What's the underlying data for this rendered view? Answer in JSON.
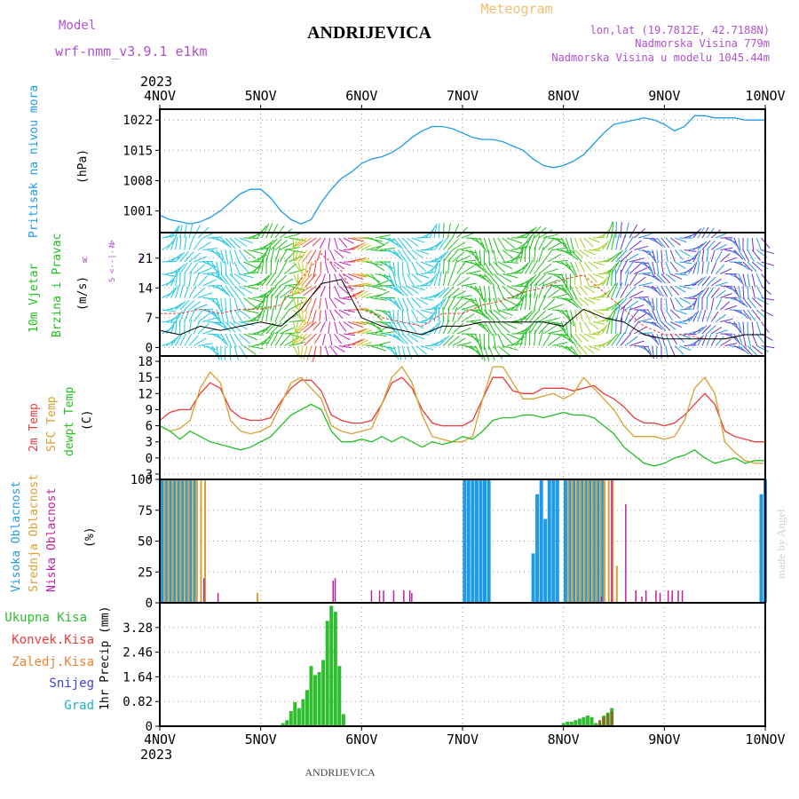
{
  "header": {
    "model_label": "Model",
    "model_name": "wrf-nmm_v3.9.1  e1km",
    "station": "ANDRIJEVICA",
    "meteogram": "Meteogram",
    "lonlat": "lon,lat (19.7812E, 42.7188N)",
    "elevation": "Nadmorska Visina 779m",
    "model_elevation": "Nadmorska Visina u modelu 1045.44m",
    "footer_station": "ANDRIJEVICA",
    "watermark": "made by Angel"
  },
  "colors": {
    "pressure": "#1e9be8",
    "temp2m": "#e83c3c",
    "sfc_temp": "#d9a030",
    "dewpt": "#22c022",
    "high_cloud": "#1e9be8",
    "mid_cloud": "#d9a030",
    "low_cloud": "#c020a0",
    "precip_total": "#2ebd2e",
    "precip_conv": "#e83c3c",
    "precip_frozen": "#f08030",
    "snow": "#4040e0",
    "hail": "#20b0c0",
    "title_purple": "#b050d0",
    "meteogram_orange": "#f0c070"
  },
  "chart_data": [
    {
      "type": "line",
      "panel": "pressure",
      "ylabel_main": "Pritisak na nivou mora",
      "ylabel_unit": "(hPa)",
      "x_ticks": [
        "4NOV",
        "5NOV",
        "6NOV",
        "7NOV",
        "8NOV",
        "9NOV",
        "10NOV"
      ],
      "x_year": "2023",
      "y_ticks": [
        1001,
        1008,
        1015,
        1022
      ],
      "ylim": [
        996,
        1024.5
      ],
      "grid": true,
      "series": [
        {
          "values_x_days": [
            0,
            0.1,
            0.2,
            0.3,
            0.4,
            0.5,
            0.6,
            0.7,
            0.8,
            0.9,
            1.0,
            1.1,
            1.2,
            1.3,
            1.4,
            1.5,
            1.6,
            1.7,
            1.8,
            1.9,
            2.0,
            2.1,
            2.2,
            2.3,
            2.4,
            2.5,
            2.6,
            2.7,
            2.8,
            2.9,
            3.0,
            3.1,
            3.2,
            3.3,
            3.4,
            3.5,
            3.6,
            3.7,
            3.8,
            3.9,
            4.0,
            4.1,
            4.2,
            4.3,
            4.4,
            4.5,
            4.6,
            4.7,
            4.8,
            4.9,
            5.0,
            5.1,
            5.2,
            5.3,
            5.4,
            5.5,
            5.6,
            5.7,
            5.8,
            5.9,
            6.0
          ],
          "values": [
            1000,
            999,
            998.5,
            998,
            998.5,
            999.5,
            1001,
            1003,
            1005,
            1006,
            1006,
            1004,
            1001,
            999,
            998,
            999,
            1003,
            1006,
            1008.5,
            1010,
            1012,
            1013,
            1013.5,
            1014.5,
            1016,
            1018,
            1019.5,
            1020.5,
            1020.5,
            1020,
            1019,
            1018,
            1017.5,
            1017.5,
            1017,
            1016,
            1015,
            1013,
            1011.5,
            1011,
            1011.5,
            1012.5,
            1014,
            1016.5,
            1019,
            1021,
            1021.5,
            1022,
            1022.5,
            1022,
            1021,
            1019.5,
            1020.5,
            1023,
            1023,
            1022.5,
            1022.5,
            1022.5,
            1022,
            1022,
            1022
          ]
        }
      ]
    },
    {
      "type": "line",
      "panel": "wind",
      "ylabel_main_1": "10m Vjetar",
      "ylabel_main_2": "Brzina i Pravac",
      "ylabel_unit": "(m/s)",
      "compass_top": "N",
      "compass_west": "W",
      "compass_east": "E",
      "compass_south": "S",
      "y_ticks": [
        0,
        7,
        14,
        21
      ],
      "ylim": [
        -2,
        27
      ],
      "grid": true,
      "series": [
        {
          "name": "wind speed",
          "values_x_days": [
            0,
            0.2,
            0.4,
            0.6,
            0.8,
            1.0,
            1.2,
            1.4,
            1.6,
            1.8,
            2.0,
            2.2,
            2.4,
            2.6,
            2.8,
            3.0,
            3.2,
            3.4,
            3.6,
            3.8,
            4.0,
            4.2,
            4.4,
            4.6,
            4.8,
            5.0,
            5.2,
            5.4,
            5.6,
            5.8,
            6.0
          ],
          "values": [
            4,
            3,
            5,
            4,
            5,
            6,
            5,
            9,
            15,
            16,
            7,
            5,
            4,
            3,
            5,
            5,
            6,
            6,
            6,
            6,
            5,
            9,
            7,
            6,
            3,
            2,
            2,
            2,
            2,
            3,
            3
          ]
        },
        {
          "name": "wind gust",
          "values_x_days": [
            0,
            0.2,
            0.4,
            0.6,
            0.8,
            1.0,
            1.2,
            1.4,
            1.6,
            1.8,
            2.0,
            2.2,
            2.4,
            2.6,
            2.8,
            3.0,
            3.2,
            3.4,
            3.6,
            3.8,
            4.0,
            4.2,
            4.4,
            4.6,
            4.8,
            5.0,
            5.2,
            5.4,
            5.6,
            5.8,
            6.0
          ],
          "values": [
            8,
            8,
            9,
            8,
            9,
            9,
            10,
            16,
            22,
            18,
            9,
            7,
            6,
            5,
            8,
            8,
            10,
            11,
            13,
            14,
            16,
            17,
            13,
            9,
            5,
            3,
            3,
            2,
            2,
            3,
            3
          ]
        }
      ]
    },
    {
      "type": "line",
      "panel": "temperature",
      "ylabel_1": "2m Temp",
      "ylabel_2": "SFC Temp",
      "ylabel_3": "dewpt Temp",
      "ylabel_unit": "(C)",
      "y_ticks": [
        -3,
        0,
        3,
        6,
        9,
        12,
        15,
        18
      ],
      "ylim": [
        -4,
        19
      ],
      "grid": true,
      "series": [
        {
          "name": "2m Temp",
          "values_x_days": [
            0,
            0.1,
            0.2,
            0.3,
            0.4,
            0.5,
            0.6,
            0.7,
            0.8,
            0.9,
            1.0,
            1.1,
            1.2,
            1.3,
            1.4,
            1.5,
            1.6,
            1.7,
            1.8,
            1.9,
            2.0,
            2.1,
            2.2,
            2.3,
            2.4,
            2.5,
            2.6,
            2.7,
            2.8,
            2.9,
            3.0,
            3.1,
            3.2,
            3.3,
            3.4,
            3.5,
            3.6,
            3.7,
            3.8,
            3.9,
            4.0,
            4.1,
            4.2,
            4.3,
            4.4,
            4.5,
            4.6,
            4.7,
            4.8,
            4.9,
            5.0,
            5.1,
            5.2,
            5.3,
            5.4,
            5.5,
            5.6,
            5.7,
            5.8,
            5.9,
            6.0
          ],
          "values": [
            7,
            8.5,
            9,
            9,
            12,
            14,
            13,
            9,
            7.5,
            7,
            7,
            7.5,
            10.5,
            13,
            14.5,
            14.5,
            12.5,
            8,
            7,
            6.5,
            6.5,
            7,
            10,
            14,
            15,
            13,
            9,
            6.5,
            6,
            6,
            6,
            7,
            11,
            15,
            15,
            12.5,
            12,
            12,
            13,
            13,
            13,
            12.5,
            13,
            13.5,
            12,
            11,
            9.5,
            7.5,
            6.5,
            6.5,
            6,
            6.5,
            8,
            10,
            12,
            10,
            5,
            4,
            3.5,
            3,
            3
          ]
        },
        {
          "name": "SFC Temp",
          "values_x_days": [
            0,
            0.1,
            0.2,
            0.3,
            0.4,
            0.5,
            0.6,
            0.7,
            0.8,
            0.9,
            1.0,
            1.1,
            1.2,
            1.3,
            1.4,
            1.5,
            1.6,
            1.7,
            1.8,
            1.9,
            2.0,
            2.1,
            2.2,
            2.3,
            2.4,
            2.5,
            2.6,
            2.7,
            2.8,
            2.9,
            3.0,
            3.1,
            3.2,
            3.3,
            3.4,
            3.5,
            3.6,
            3.7,
            3.8,
            3.9,
            4.0,
            4.1,
            4.2,
            4.3,
            4.4,
            4.5,
            4.6,
            4.7,
            4.8,
            4.9,
            5.0,
            5.1,
            5.2,
            5.3,
            5.4,
            5.5,
            5.6,
            5.7,
            5.8,
            5.9,
            6.0
          ],
          "values": [
            6,
            5,
            5.5,
            7,
            13,
            16,
            14,
            7,
            5,
            4.5,
            5,
            6,
            10,
            14,
            15,
            13,
            11,
            6,
            5,
            4.5,
            5,
            5.5,
            10,
            15,
            17,
            14,
            8,
            4,
            3.5,
            3,
            3,
            4,
            11,
            17,
            17,
            14,
            11,
            11,
            11.5,
            12,
            11,
            12,
            15,
            13,
            11,
            9,
            6,
            4,
            4,
            4,
            3.5,
            4,
            7,
            13,
            15,
            12,
            3,
            1,
            -0.5,
            -1,
            -1
          ]
        },
        {
          "name": "dewpt Temp",
          "values_x_days": [
            0,
            0.1,
            0.2,
            0.3,
            0.4,
            0.5,
            0.6,
            0.7,
            0.8,
            0.9,
            1.0,
            1.1,
            1.2,
            1.3,
            1.4,
            1.5,
            1.6,
            1.7,
            1.8,
            1.9,
            2.0,
            2.1,
            2.2,
            2.3,
            2.4,
            2.5,
            2.6,
            2.7,
            2.8,
            2.9,
            3.0,
            3.1,
            3.2,
            3.3,
            3.4,
            3.5,
            3.6,
            3.7,
            3.8,
            3.9,
            4.0,
            4.1,
            4.2,
            4.3,
            4.4,
            4.5,
            4.6,
            4.7,
            4.8,
            4.9,
            5.0,
            5.1,
            5.2,
            5.3,
            5.4,
            5.5,
            5.6,
            5.7,
            5.8,
            5.9,
            6.0
          ],
          "values": [
            6,
            5,
            3.5,
            5,
            4,
            3,
            2.5,
            2,
            1.5,
            2,
            3,
            4,
            6,
            8,
            9,
            10,
            9,
            5,
            3,
            3,
            3.5,
            3,
            4,
            3,
            4,
            3,
            2,
            3,
            2.5,
            3,
            4,
            3.5,
            5,
            7,
            7.5,
            7.5,
            8,
            8,
            7.5,
            8,
            8.5,
            8,
            8,
            7.5,
            6,
            4.5,
            2,
            0.5,
            -1,
            -1.5,
            -1,
            0,
            0.5,
            1.5,
            0,
            -1,
            -0.5,
            0,
            -1,
            -0.5,
            -0.5
          ]
        }
      ]
    },
    {
      "type": "bar",
      "panel": "clouds",
      "ylabel_1": "Visoka Oblacnost",
      "ylabel_2": "Srednja Oblacnost",
      "ylabel_3": "Niska Oblacnost",
      "ylabel_unit": "(%)",
      "y_ticks": [
        0,
        25,
        50,
        75,
        100
      ],
      "ylim": [
        0,
        100
      ],
      "grid": true,
      "series": [
        {
          "name": "Visoka Oblacnost",
          "x_days": [
            0.02,
            0.06,
            0.1,
            0.14,
            0.18,
            0.22,
            0.26,
            0.3,
            0.34,
            3.02,
            3.06,
            3.1,
            3.14,
            3.18,
            3.22,
            3.26,
            3.7,
            3.74,
            3.78,
            3.82,
            3.86,
            3.9,
            3.94,
            4.02,
            4.06,
            4.1,
            4.14,
            4.18,
            4.22,
            4.26,
            4.3,
            4.34,
            4.38,
            5.96,
            6.0
          ],
          "values": [
            100,
            100,
            100,
            100,
            100,
            100,
            100,
            100,
            100,
            100,
            100,
            100,
            100,
            100,
            100,
            100,
            40,
            88,
            100,
            68,
            100,
            100,
            100,
            100,
            100,
            100,
            100,
            100,
            100,
            100,
            100,
            100,
            100,
            88,
            100
          ]
        },
        {
          "name": "Srednja Oblacnost",
          "x_days": [
            0.04,
            0.08,
            0.12,
            0.16,
            0.2,
            0.24,
            0.28,
            0.32,
            0.36,
            0.4,
            0.44,
            0.96,
            4.04,
            4.08,
            4.12,
            4.16,
            4.2,
            4.24,
            4.28,
            4.32,
            4.36,
            4.4,
            4.44,
            4.48,
            4.52
          ],
          "values": [
            100,
            100,
            100,
            100,
            100,
            100,
            100,
            100,
            100,
            100,
            100,
            8,
            100,
            100,
            100,
            100,
            100,
            100,
            100,
            100,
            100,
            100,
            100,
            100,
            30
          ]
        },
        {
          "name": "Niska Oblacnost",
          "x_days": [
            0.42,
            0.56,
            1.7,
            1.72,
            2.08,
            2.16,
            2.2,
            2.3,
            2.4,
            2.46,
            2.48,
            4.36,
            4.46,
            4.6,
            4.7,
            4.76,
            4.8,
            4.9,
            4.94,
            5.02,
            5.06,
            5.12,
            5.16
          ],
          "values": [
            20,
            8,
            18,
            20,
            10,
            10,
            10,
            10,
            10,
            10,
            8,
            5,
            100,
            80,
            10,
            5,
            10,
            10,
            8,
            10,
            10,
            10,
            10
          ]
        }
      ]
    },
    {
      "type": "bar",
      "panel": "precip",
      "legend": [
        "Ukupna Kisa",
        "Konvek.Kisa",
        "Zaledj.Kisa",
        "Snijeg",
        "Grad"
      ],
      "ylabel_unit": "1hr Precip (mm)",
      "y_ticks": [
        0,
        0.82,
        1.64,
        2.46,
        3.28
      ],
      "ylim": [
        0,
        4.1
      ],
      "grid": true,
      "series": [
        {
          "name": "Ukupna Kisa",
          "x_days": [
            1.22,
            1.26,
            1.3,
            1.34,
            1.38,
            1.42,
            1.46,
            1.5,
            1.54,
            1.58,
            1.62,
            1.66,
            1.7,
            1.74,
            1.78,
            1.82,
            4.0,
            4.04,
            4.08,
            4.12,
            4.16,
            4.2,
            4.24,
            4.28,
            4.32,
            4.36,
            4.4,
            4.44,
            4.48
          ],
          "values": [
            0.1,
            0.2,
            0.5,
            0.8,
            0.6,
            0.9,
            1.2,
            2.0,
            1.7,
            1.8,
            2.2,
            3.5,
            4.0,
            3.8,
            2.0,
            0.4,
            0.1,
            0.15,
            0.15,
            0.2,
            0.25,
            0.3,
            0.35,
            0.3,
            0.1,
            0.1,
            0.35,
            0.45,
            0.6
          ]
        },
        {
          "name": "Konvek.Kisa",
          "x_days": [
            4.36,
            4.4,
            4.44,
            4.48
          ],
          "values": [
            0.2,
            0.3,
            0.4,
            0.5
          ]
        }
      ]
    }
  ]
}
